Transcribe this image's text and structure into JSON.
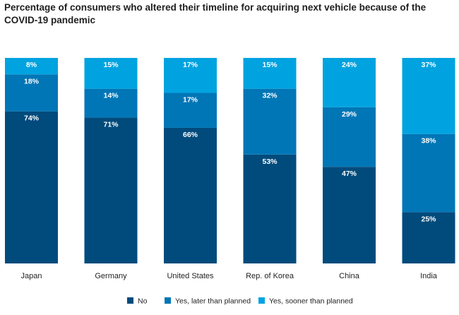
{
  "title": "Percentage of consumers who altered their timeline for acquiring next vehicle because of the COVID-19 pandemic",
  "colors": {
    "No": "#004b7c",
    "Yes, later than planned": "#0076b6",
    "Yes, sooner than planned": "#00a3e0"
  },
  "chart_data": {
    "type": "bar",
    "stacked": true,
    "title": "Percentage of consumers who altered their timeline for acquiring next vehicle because of the COVID-19 pandemic",
    "xlabel": "",
    "ylabel": "",
    "ylim": [
      0,
      100
    ],
    "grid": false,
    "legend_position": "bottom",
    "categories": [
      "Japan",
      "Germany",
      "United States",
      "Rep. of Korea",
      "China",
      "India"
    ],
    "series": [
      {
        "name": "No",
        "values": [
          74,
          71,
          66,
          53,
          47,
          25
        ],
        "labels": [
          "74%",
          "71%",
          "66%",
          "53%",
          "47%",
          "25%"
        ]
      },
      {
        "name": "Yes, later than planned",
        "values": [
          18,
          14,
          17,
          32,
          29,
          38
        ],
        "labels": [
          "18%",
          "14%",
          "17%",
          "32%",
          "29%",
          "38%"
        ]
      },
      {
        "name": "Yes, sooner than planned",
        "values": [
          8,
          15,
          17,
          15,
          24,
          37
        ],
        "labels": [
          "8%",
          "15%",
          "17%",
          "15%",
          "24%",
          "37%"
        ]
      }
    ]
  }
}
